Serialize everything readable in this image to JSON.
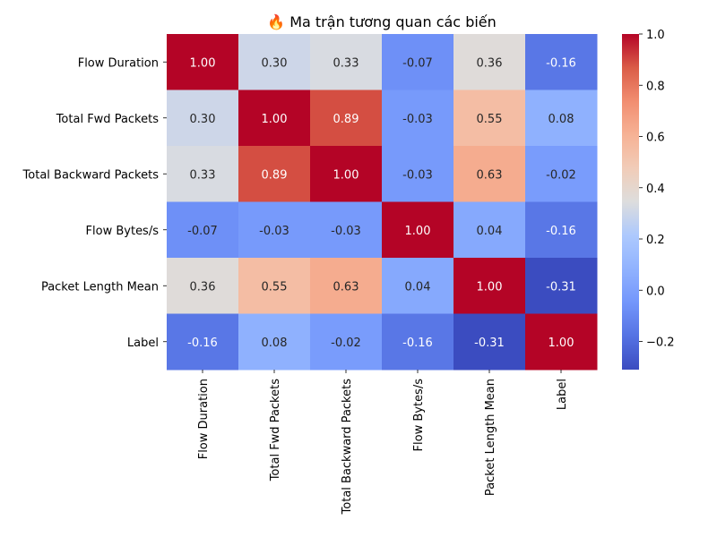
{
  "chart_data": {
    "type": "heatmap",
    "title": "🔥 Ma trận tương quan các biến",
    "rows": [
      "Flow Duration",
      "Total Fwd Packets",
      "Total Backward Packets",
      "Flow Bytes/s",
      "Packet Length Mean",
      "Label"
    ],
    "columns": [
      "Flow Duration",
      "Total Fwd Packets",
      "Total Backward Packets",
      "Flow Bytes/s",
      "Packet Length Mean",
      "Label"
    ],
    "values": [
      [
        1.0,
        0.3,
        0.33,
        -0.07,
        0.36,
        -0.16
      ],
      [
        0.3,
        1.0,
        0.89,
        -0.03,
        0.55,
        0.08
      ],
      [
        0.33,
        0.89,
        1.0,
        -0.03,
        0.63,
        -0.02
      ],
      [
        -0.07,
        -0.03,
        -0.03,
        1.0,
        0.04,
        -0.16
      ],
      [
        0.36,
        0.55,
        0.63,
        0.04,
        1.0,
        -0.31
      ],
      [
        -0.16,
        0.08,
        -0.02,
        -0.16,
        -0.31,
        1.0
      ]
    ],
    "colormap": "coolwarm",
    "vmin": -0.31,
    "vmax": 1.0,
    "annotation_format": "0.00",
    "colorbar_ticks": [
      1.0,
      0.8,
      0.6,
      0.4,
      0.2,
      0.0,
      -0.2
    ],
    "colorbar_tick_labels": [
      "1.0",
      "0.8",
      "0.6",
      "0.4",
      "0.2",
      "0.0",
      "−0.2"
    ]
  }
}
